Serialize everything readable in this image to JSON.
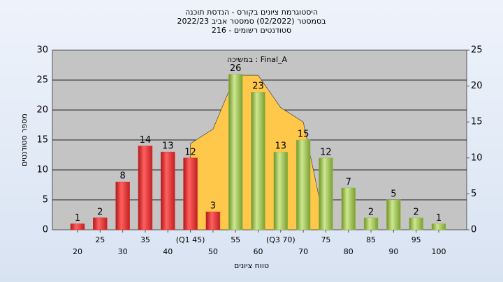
{
  "chart_data": {
    "type": "bar",
    "title": [
      "היסטוגרמת ציונים בקורס - הנדסת תוכנה",
      "בסמסטר  (02/2022)  סמסטר אביב 2022/23",
      "סטודנטים רשומים - 216"
    ],
    "x_label": "טווח ציונים",
    "y_label": "מספר סטודנטים",
    "categories": [
      "20",
      "25",
      "30",
      "35",
      "40",
      "(Q1 45)",
      "50",
      "55",
      "60",
      "(Q3 70)",
      "70",
      "75",
      "80",
      "85",
      "90",
      "95",
      "100"
    ],
    "series": [
      {
        "name": "bars",
        "type": "bar",
        "colors": [
          "#e03030",
          "#e03030",
          "#e03030",
          "#e03030",
          "#e03030",
          "#e03030",
          "#e03030",
          "#9cc04a",
          "#9cc04a",
          "#9cc04a",
          "#9cc04a",
          "#9cc04a",
          "#9cc04a",
          "#9cc04a",
          "#9cc04a",
          "#9cc04a",
          "#9cc04a"
        ],
        "values": [
          1,
          2,
          8,
          14,
          13,
          12,
          3,
          26,
          23,
          13,
          15,
          12,
          7,
          2,
          5,
          2,
          1
        ]
      },
      {
        "name": "במשיכה : Final_A",
        "type": "area",
        "axis": "y2",
        "color": "#ffc84a",
        "values": [
          null,
          null,
          null,
          null,
          null,
          12,
          14,
          21.5,
          21.5,
          17,
          15,
          0,
          null,
          null,
          null,
          null,
          null
        ]
      }
    ],
    "ylim": [
      0,
      30
    ],
    "yticks": [
      0,
      5,
      10,
      15,
      20,
      25,
      30
    ],
    "y2lim": [
      0,
      25
    ],
    "y2ticks": [
      0,
      5,
      10,
      15,
      20,
      25
    ],
    "grid": true
  }
}
